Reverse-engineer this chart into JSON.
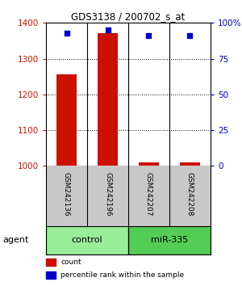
{
  "title": "GDS3138 / 200702_s_at",
  "samples": [
    "GSM242136",
    "GSM242196",
    "GSM242207",
    "GSM242208"
  ],
  "count_values": [
    1257,
    1371,
    1009,
    1010
  ],
  "percentile_values": [
    93,
    95,
    91,
    91
  ],
  "groups": [
    {
      "label": "control",
      "samples": [
        0,
        1
      ],
      "color": "#99ee99"
    },
    {
      "label": "miR-335",
      "samples": [
        2,
        3
      ],
      "color": "#55cc55"
    }
  ],
  "group_label": "agent",
  "ylim_left": [
    1000,
    1400
  ],
  "ylim_right": [
    0,
    100
  ],
  "yticks_left": [
    1000,
    1100,
    1200,
    1300,
    1400
  ],
  "yticks_right": [
    0,
    25,
    50,
    75,
    100
  ],
  "ytick_right_labels": [
    "0",
    "25",
    "50",
    "75",
    "100%"
  ],
  "bar_color": "#cc1100",
  "dot_color": "#0000cc",
  "bar_width": 0.5,
  "legend_items": [
    {
      "label": "count",
      "color": "#cc1100"
    },
    {
      "label": "percentile rank within the sample",
      "color": "#0000cc"
    }
  ]
}
